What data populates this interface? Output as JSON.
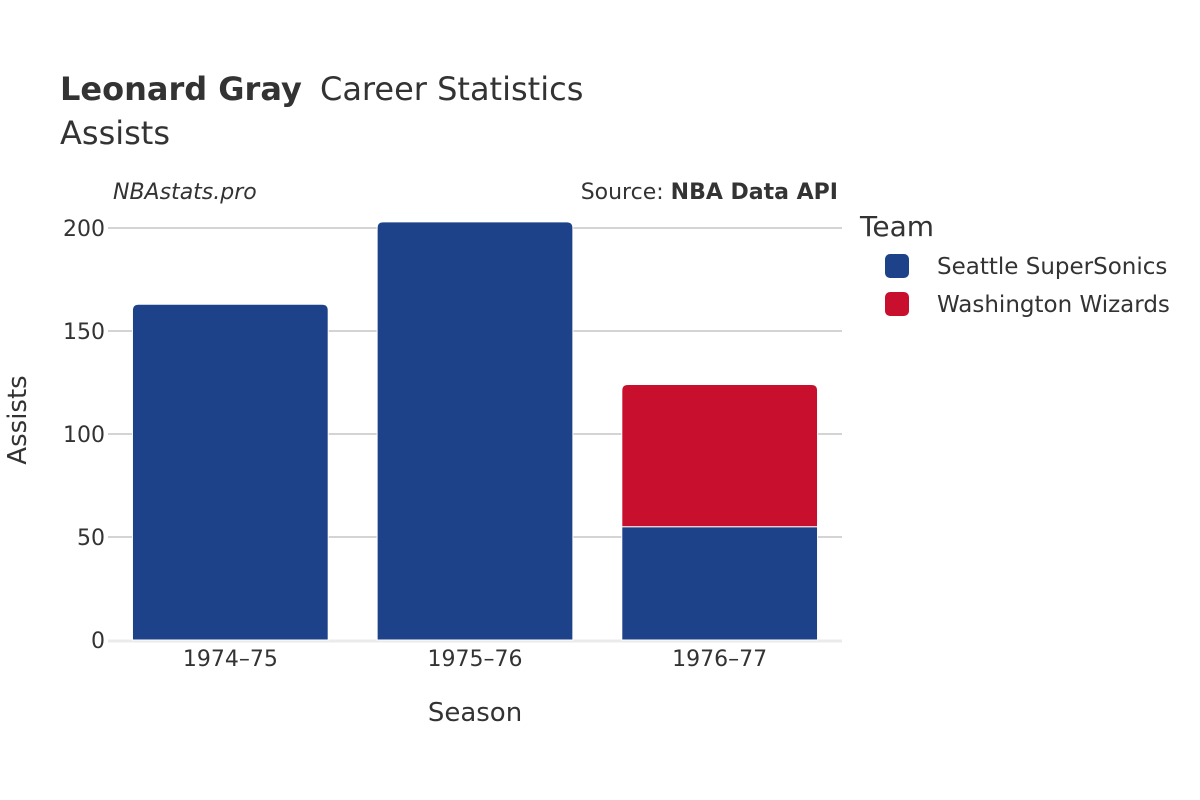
{
  "header": {
    "title_bold": "Leonard Gray",
    "title_rest": "Career Statistics",
    "subtitle": "Assists"
  },
  "credits": {
    "site": "NBAstats.pro",
    "source_prefix": "Source: ",
    "source_name": "NBA Data API"
  },
  "legend": {
    "title": "Team",
    "items": [
      {
        "label": "Seattle SuperSonics",
        "color": "#1d4289"
      },
      {
        "label": "Washington Wizards",
        "color": "#c8102e"
      }
    ]
  },
  "chart_data": {
    "type": "bar",
    "stacked": true,
    "categories": [
      "1974–75",
      "1975–76",
      "1976–77"
    ],
    "series": [
      {
        "name": "Seattle SuperSonics",
        "color": "#1d4289",
        "values": [
          163,
          203,
          55
        ]
      },
      {
        "name": "Washington Wizards",
        "color": "#c8102e",
        "values": [
          0,
          0,
          69
        ]
      }
    ],
    "xlabel": "Season",
    "ylabel": "Assists",
    "ylim": [
      0,
      200
    ],
    "yticks": [
      0,
      50,
      100,
      150,
      200
    ],
    "grid": true,
    "legend_position": "right"
  }
}
